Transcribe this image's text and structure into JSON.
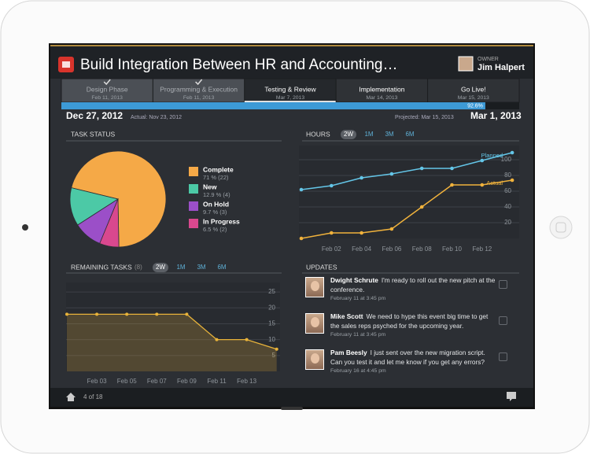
{
  "header": {
    "title": "Build Integration Between HR and Accounting…",
    "owner_label": "OWNER",
    "owner_name": "Jim Halpert"
  },
  "phases": [
    {
      "name": "Design Phase",
      "date": "Feb 11, 2013",
      "done": true,
      "current": false
    },
    {
      "name": "Programming & Execution",
      "date": "Feb 11, 2013",
      "done": true,
      "current": false
    },
    {
      "name": "Testing & Review",
      "date": "Mar 7, 2013",
      "done": false,
      "current": true
    },
    {
      "name": "Implementation",
      "date": "Mar 14, 2013",
      "done": false,
      "current": false
    },
    {
      "name": "Go Live!",
      "date": "Mar 15, 2013",
      "done": false,
      "current": false
    }
  ],
  "progress": {
    "value": 92.6,
    "label": "92.6%",
    "xlim": [
      0,
      100
    ],
    "color": "#3d9ad6"
  },
  "dates": {
    "start": "Dec 27, 2012",
    "actual": "Actual: Nov 23, 2012",
    "projected": "Projected: Mar 15, 2013",
    "end": "Mar 1, 2013"
  },
  "chart_data": [
    {
      "type": "pie",
      "title": "TASK STATUS",
      "categories": [
        "Complete",
        "New",
        "On Hold",
        "In Progress"
      ],
      "values": [
        71,
        12.9,
        9.7,
        6.5
      ],
      "value_labels": [
        "71 % (22)",
        "12.9 % (4)",
        "9.7 % (3)",
        "6.5 % (2)"
      ],
      "colors": [
        "#f5a947",
        "#4cc9a6",
        "#9b4fc8",
        "#d9488e"
      ]
    },
    {
      "type": "line",
      "title": "HOURS",
      "periods": [
        "2W",
        "1M",
        "3M",
        "6M"
      ],
      "selected_period": "2W",
      "categories": [
        null,
        "Feb 02",
        "Feb 04",
        "Feb 06",
        "Feb 08",
        "Feb 10",
        "Feb 12",
        null
      ],
      "series": [
        {
          "name": "Planned",
          "color": "#64c6e8",
          "values": [
            62,
            67,
            77,
            82,
            89,
            89,
            99,
            109
          ]
        },
        {
          "name": "Actual",
          "color": "#f0b23c",
          "values": [
            0,
            7,
            7,
            12,
            40,
            68,
            68,
            74
          ]
        }
      ],
      "ylim": [
        0,
        118
      ],
      "yticks": [
        20,
        40,
        60,
        80,
        100
      ],
      "grid": true
    },
    {
      "type": "area",
      "title": "REMAINING TASKS",
      "count": "(8)",
      "periods": [
        "2W",
        "1M",
        "3M",
        "6M"
      ],
      "selected_period": "2W",
      "categories": [
        null,
        "Feb 03",
        "Feb 05",
        "Feb 07",
        "Feb 09",
        "Feb 11",
        "Feb 13",
        null
      ],
      "values": [
        18,
        18,
        18,
        18,
        18,
        10,
        10,
        7
      ],
      "color": "#e8b33a",
      "ylim": [
        0,
        28
      ],
      "yticks": [
        5,
        10,
        15,
        20,
        25
      ],
      "grid": true
    }
  ],
  "updates": {
    "title": "UPDATES",
    "items": [
      {
        "name": "Dwight Schrute",
        "message": "I'm ready to roll out the new pitch at the conference.",
        "time": "February 11 at 3:45 pm"
      },
      {
        "name": "Mike Scott",
        "message": "We need to hype this event big time to get the sales reps psyched for the upcoming year.",
        "time": "February 11 at 3:45 pm"
      },
      {
        "name": "Pam Beesly",
        "message": "I just sent over the new migration script. Can you test it and let me know if you get any errors?",
        "time": "February 16 at 4:45 pm"
      }
    ]
  },
  "footer": {
    "page": "4 of 18"
  }
}
